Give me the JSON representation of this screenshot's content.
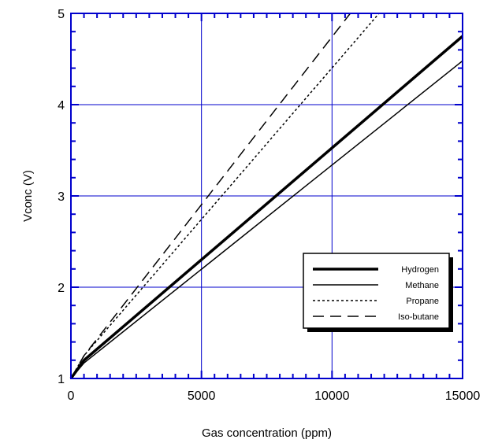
{
  "chart_data": {
    "type": "line",
    "xlabel": "Gas concentration (ppm)",
    "ylabel": "Vconc (V)",
    "xlim": [
      0,
      15000
    ],
    "ylim": [
      1,
      5
    ],
    "x_ticks": [
      0,
      5000,
      10000,
      15000
    ],
    "y_ticks": [
      1,
      2,
      3,
      4,
      5
    ],
    "x_tick_labels": [
      "0",
      "5000",
      "10000",
      "15000"
    ],
    "y_tick_labels": [
      "1",
      "2",
      "3",
      "4",
      "5"
    ],
    "grid": true,
    "legend_position": "lower-right",
    "colors": {
      "axis": "#0000cc",
      "grid": "#0000cc",
      "series": "#000000"
    },
    "series": [
      {
        "name": "Hydrogen",
        "style": "solid-thick",
        "x": [
          0,
          500,
          15000
        ],
        "y": [
          1.0,
          1.2,
          4.75
        ]
      },
      {
        "name": "Methane",
        "style": "solid-thin",
        "x": [
          0,
          500,
          15000
        ],
        "y": [
          1.0,
          1.17,
          4.48
        ]
      },
      {
        "name": "Propane",
        "style": "dotted",
        "x": [
          0,
          500,
          11800
        ],
        "y": [
          1.0,
          1.25,
          5.0
        ]
      },
      {
        "name": "Iso-butane",
        "style": "dashed",
        "x": [
          0,
          500,
          10700
        ],
        "y": [
          1.0,
          1.25,
          5.0
        ]
      }
    ]
  }
}
